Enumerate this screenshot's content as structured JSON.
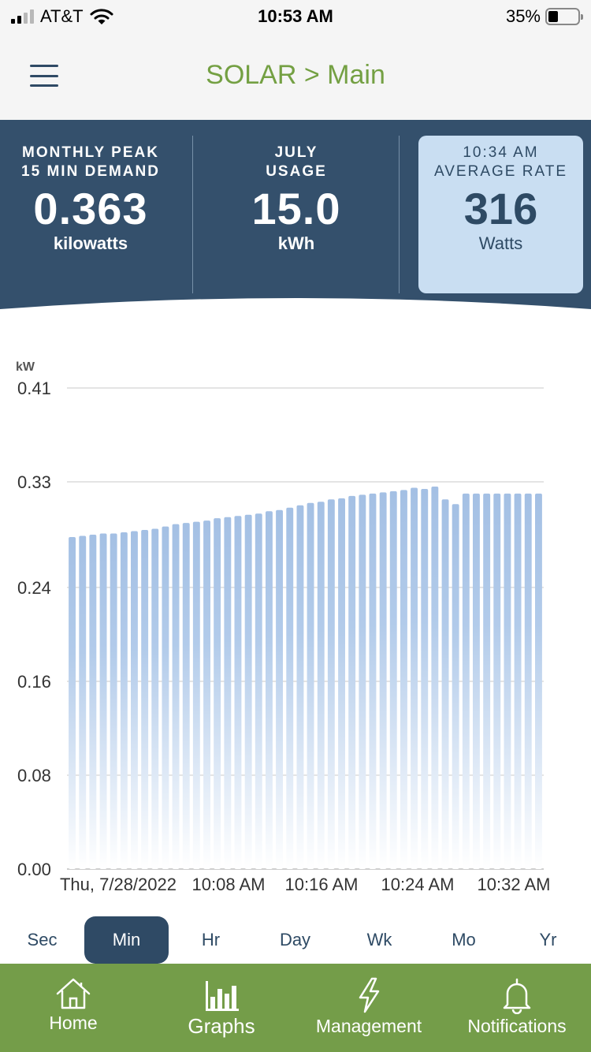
{
  "status_bar": {
    "carrier": "AT&T",
    "time": "10:53 AM",
    "battery": "35%"
  },
  "nav": {
    "title": "SOLAR > Main"
  },
  "stats": {
    "peak": {
      "label1": "MONTHLY PEAK",
      "label2": "15 MIN DEMAND",
      "value": "0.363",
      "unit": "kilowatts"
    },
    "usage": {
      "label1": "JULY",
      "label2": "USAGE",
      "value": "15.0",
      "unit": "kWh"
    },
    "rate": {
      "label1": "10:34 AM",
      "label2": "AVERAGE RATE",
      "value": "316",
      "unit": "Watts"
    }
  },
  "colors": {
    "navy": "#34506c",
    "green": "#749d49",
    "bar": "#a4c0e4",
    "card": "#c9def2"
  },
  "chart_data": {
    "type": "bar",
    "ylabel": "kW",
    "ylim": [
      0,
      0.41
    ],
    "yticks": [
      "0.41",
      "0.33",
      "0.24",
      "0.16",
      "0.08",
      "0.00"
    ],
    "ytick_values": [
      0.41,
      0.33,
      0.24,
      0.16,
      0.08,
      0.0
    ],
    "xticks": [
      "Thu, 7/28/2022",
      "10:08 AM",
      "10:16 AM",
      "10:24 AM",
      "10:32 AM"
    ],
    "values": [
      0.283,
      0.284,
      0.285,
      0.286,
      0.286,
      0.287,
      0.288,
      0.289,
      0.29,
      0.292,
      0.294,
      0.295,
      0.296,
      0.297,
      0.299,
      0.3,
      0.301,
      0.302,
      0.303,
      0.305,
      0.306,
      0.308,
      0.31,
      0.312,
      0.313,
      0.315,
      0.316,
      0.318,
      0.319,
      0.32,
      0.321,
      0.322,
      0.323,
      0.325,
      0.324,
      0.326,
      0.315,
      0.311,
      0.32,
      0.32,
      0.32,
      0.32,
      0.32,
      0.32,
      0.32,
      0.32
    ]
  },
  "ranges": [
    {
      "label": "Sec",
      "active": false
    },
    {
      "label": "Min",
      "active": true
    },
    {
      "label": "Hr",
      "active": false
    },
    {
      "label": "Day",
      "active": false
    },
    {
      "label": "Wk",
      "active": false
    },
    {
      "label": "Mo",
      "active": false
    },
    {
      "label": "Yr",
      "active": false
    }
  ],
  "tabs": [
    {
      "label": "Home",
      "icon": "home-icon"
    },
    {
      "label": "Graphs",
      "icon": "bar-chart-icon"
    },
    {
      "label": "Management",
      "icon": "lightning-icon"
    },
    {
      "label": "Notifications",
      "icon": "bell-icon"
    }
  ]
}
